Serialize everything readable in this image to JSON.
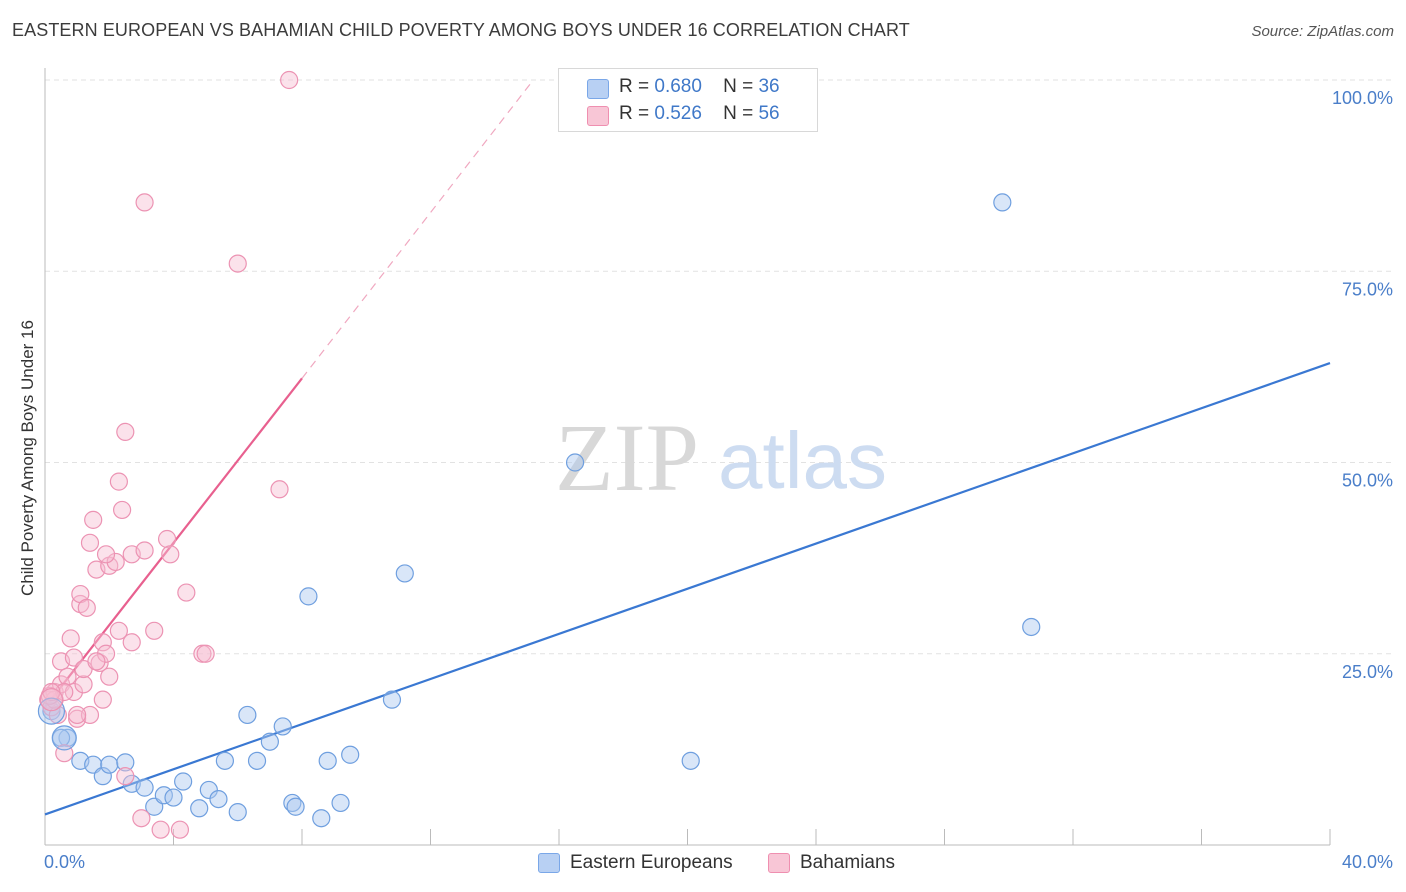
{
  "title": "EASTERN EUROPEAN VS BAHAMIAN CHILD POVERTY AMONG BOYS UNDER 16 CORRELATION CHART",
  "source": "Source: ZipAtlas.com",
  "watermark": {
    "zip": "ZIP",
    "atlas": "atlas"
  },
  "legend": {
    "r_label": "R =",
    "n_label": "N =",
    "series": [
      {
        "name": "Eastern Europeans",
        "r": "0.680",
        "n": "36",
        "color": "#7aa7e8",
        "fill": "#b8d0f3"
      },
      {
        "name": "Bahamians",
        "r": "0.526",
        "n": "56",
        "color": "#ef8fb0",
        "fill": "#f8c6d6"
      }
    ]
  },
  "chart_data": {
    "type": "scatter",
    "title": "EASTERN EUROPEAN VS BAHAMIAN CHILD POVERTY AMONG BOYS UNDER 16 CORRELATION CHART",
    "xlabel": "",
    "ylabel": "Child Poverty Among Boys Under 16",
    "xlim": [
      0,
      40
    ],
    "ylim": [
      0,
      100
    ],
    "x_tick_labels": [
      "0.0%",
      "40.0%"
    ],
    "y_ticks": [
      25,
      50,
      75,
      100
    ],
    "y_tick_labels": [
      "25.0%",
      "50.0%",
      "75.0%",
      "100.0%"
    ],
    "series": [
      {
        "name": "Eastern Europeans",
        "color": "#3a78d2",
        "points": [
          [
            0.2,
            17.5
          ],
          [
            0.7,
            14
          ],
          [
            1.1,
            11
          ],
          [
            1.5,
            10.5
          ],
          [
            1.8,
            9
          ],
          [
            2.0,
            10.5
          ],
          [
            2.5,
            10.8
          ],
          [
            2.7,
            8
          ],
          [
            3.1,
            7.5
          ],
          [
            3.4,
            5
          ],
          [
            3.7,
            6.5
          ],
          [
            4.0,
            6.2
          ],
          [
            4.3,
            8.3
          ],
          [
            4.8,
            4.8
          ],
          [
            5.1,
            7.2
          ],
          [
            5.4,
            6
          ],
          [
            5.6,
            11
          ],
          [
            6.0,
            4.3
          ],
          [
            6.3,
            17
          ],
          [
            6.6,
            11
          ],
          [
            7.0,
            13.5
          ],
          [
            7.4,
            15.5
          ],
          [
            7.7,
            5.5
          ],
          [
            7.8,
            5
          ],
          [
            8.2,
            32.5
          ],
          [
            8.6,
            3.5
          ],
          [
            8.8,
            11
          ],
          [
            9.2,
            5.5
          ],
          [
            9.5,
            11.8
          ],
          [
            10.8,
            19
          ],
          [
            11.2,
            35.5
          ],
          [
            16.5,
            50
          ],
          [
            20.1,
            11
          ],
          [
            29.8,
            84
          ],
          [
            30.7,
            28.5
          ],
          [
            0.5,
            14
          ]
        ],
        "trend": {
          "x0": 0,
          "y0": 4,
          "x1": 40,
          "y1": 63
        }
      },
      {
        "name": "Bahamians",
        "color": "#e8608f",
        "points": [
          [
            0.1,
            19
          ],
          [
            0.2,
            18
          ],
          [
            0.3,
            20
          ],
          [
            0.4,
            17
          ],
          [
            0.5,
            21
          ],
          [
            0.5,
            24
          ],
          [
            0.6,
            12
          ],
          [
            0.7,
            22
          ],
          [
            0.8,
            27
          ],
          [
            0.9,
            20
          ],
          [
            0.9,
            24.5
          ],
          [
            1.0,
            16.5
          ],
          [
            1.1,
            31.5
          ],
          [
            1.1,
            32.8
          ],
          [
            1.2,
            21
          ],
          [
            1.2,
            23
          ],
          [
            1.3,
            31
          ],
          [
            1.4,
            17
          ],
          [
            1.4,
            39.5
          ],
          [
            1.5,
            42.5
          ],
          [
            1.6,
            36
          ],
          [
            1.7,
            23.8
          ],
          [
            1.8,
            26.5
          ],
          [
            1.8,
            19
          ],
          [
            1.9,
            25
          ],
          [
            2.0,
            22
          ],
          [
            2.0,
            36.5
          ],
          [
            2.2,
            37
          ],
          [
            2.3,
            28
          ],
          [
            2.3,
            47.5
          ],
          [
            2.4,
            43.8
          ],
          [
            2.5,
            9
          ],
          [
            2.5,
            54
          ],
          [
            2.7,
            26.5
          ],
          [
            2.7,
            38
          ],
          [
            3.0,
            3.5
          ],
          [
            3.1,
            84
          ],
          [
            3.1,
            38.5
          ],
          [
            3.4,
            28
          ],
          [
            3.6,
            2
          ],
          [
            3.8,
            40
          ],
          [
            3.9,
            38
          ],
          [
            4.2,
            2
          ],
          [
            4.4,
            33
          ],
          [
            4.9,
            25
          ],
          [
            5.0,
            25
          ],
          [
            6.0,
            76
          ],
          [
            7.3,
            46.5
          ],
          [
            7.6,
            100
          ],
          [
            0.3,
            19
          ],
          [
            1.0,
            17
          ],
          [
            1.6,
            24
          ],
          [
            1.9,
            38
          ],
          [
            0.6,
            20
          ],
          [
            0.15,
            19.5
          ],
          [
            0.2,
            20
          ]
        ],
        "trend": {
          "x0": 0,
          "y0": 18,
          "x1": 8,
          "y1": 61
        },
        "trend_dashed": {
          "x0": 8,
          "y0": 61,
          "x1": 15.2,
          "y1": 100
        }
      }
    ]
  }
}
